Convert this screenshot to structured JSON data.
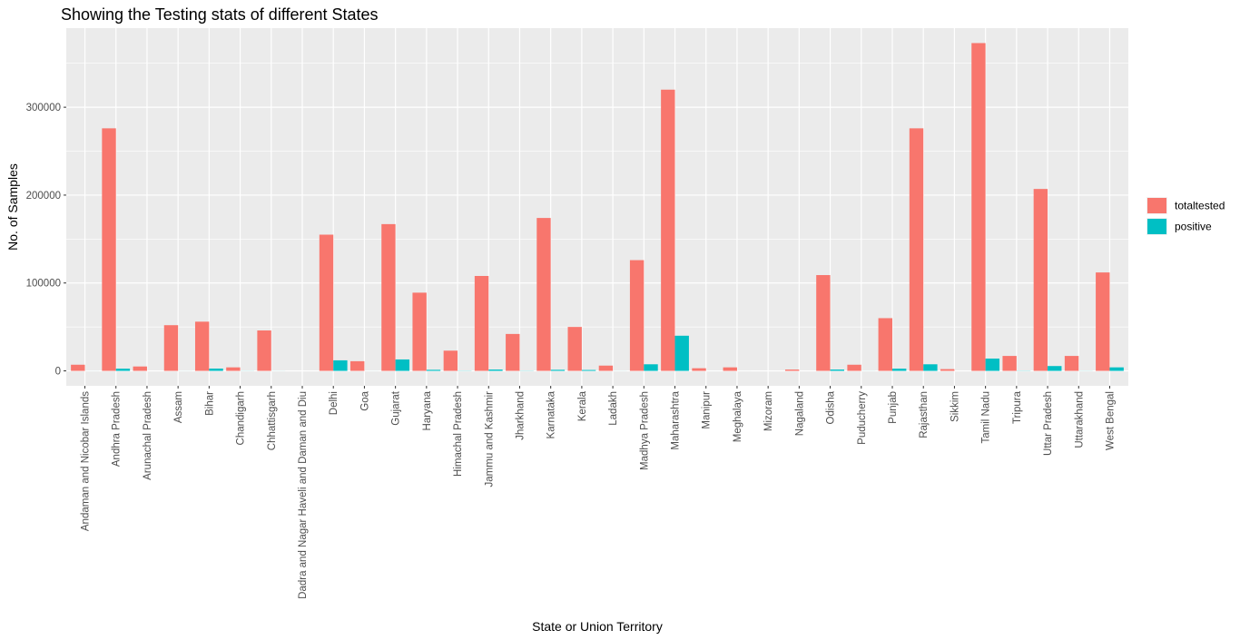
{
  "chart_data": {
    "type": "bar",
    "title": "Showing the Testing stats of different States",
    "xlabel": "State or Union Territory",
    "ylabel": "No. of Samples",
    "ylim": [
      -17000,
      390000
    ],
    "yticks": [
      0,
      100000,
      200000,
      300000
    ],
    "ytick_labels": [
      "0",
      "100000",
      "200000",
      "300000"
    ],
    "grid": true,
    "legend_position": "right",
    "categories": [
      "Andaman and Nicobar Islands",
      "Andhra Pradesh",
      "Arunachal Pradesh",
      "Assam",
      "Bihar",
      "Chandigarh",
      "Chhattisgarh",
      "Dadra and Nagar Haveli and Daman and Diu",
      "Delhi",
      "Goa",
      "Gujarat",
      "Haryana",
      "Himachal Pradesh",
      "Jammu and Kashmir",
      "Jharkhand",
      "Karnataka",
      "Kerala",
      "Ladakh",
      "Madhya Pradesh",
      "Maharashtra",
      "Manipur",
      "Meghalaya",
      "Mizoram",
      "Nagaland",
      "Odisha",
      "Puducherry",
      "Punjab",
      "Rajasthan",
      "Sikkim",
      "Tamil Nadu",
      "Tripura",
      "Uttar Pradesh",
      "Uttarakhand",
      "West Bengal"
    ],
    "series": [
      {
        "name": "totaltested",
        "color": "#F8766D",
        "values": [
          7000,
          276000,
          5000,
          52000,
          56000,
          4000,
          46000,
          0,
          155000,
          11000,
          167000,
          89000,
          23000,
          108000,
          42000,
          174000,
          50000,
          6000,
          126000,
          320000,
          3000,
          4000,
          0,
          1500,
          109000,
          7000,
          60000,
          276000,
          2000,
          373000,
          17000,
          207000,
          17000,
          112000
        ]
      },
      {
        "name": "positive",
        "color": "#00BFC4",
        "values": [
          33,
          2500,
          1,
          43,
          2600,
          100,
          50,
          0,
          12000,
          30,
          13000,
          1200,
          200,
          1500,
          200,
          1200,
          1000,
          50,
          7500,
          40000,
          5,
          13,
          1,
          0,
          1500,
          50,
          2500,
          7500,
          0,
          14000,
          200,
          5500,
          100,
          4000
        ]
      }
    ]
  }
}
